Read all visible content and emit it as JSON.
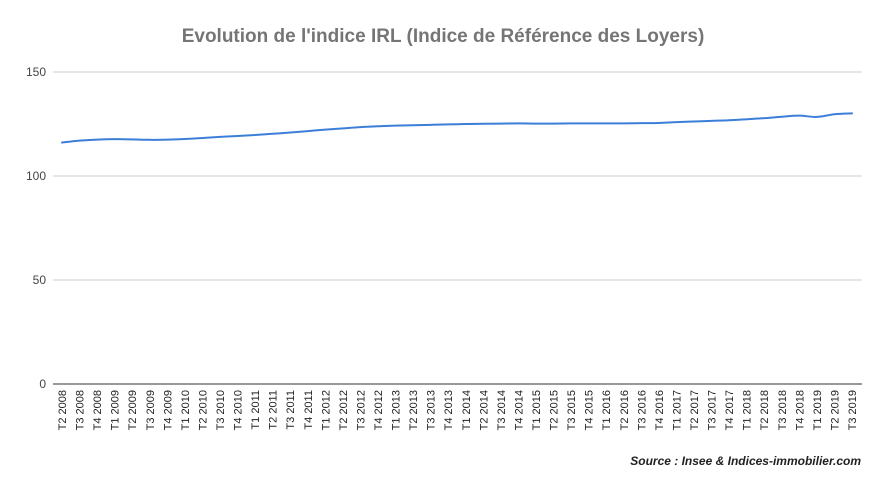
{
  "chart_data": {
    "type": "line",
    "title": "Evolution de l'indice IRL (Indice de Référence des Loyers)",
    "xlabel": "",
    "ylabel": "",
    "ylim": [
      0,
      150
    ],
    "yticks": [
      0,
      50,
      100,
      150
    ],
    "grid": true,
    "legend": "none",
    "line_color": "#3c7fd9",
    "source": "Source : Insee & Indices-immobilier.com",
    "x": [
      "T2 2008",
      "T3 2008",
      "T4 2008",
      "T1 2009",
      "T2 2009",
      "T3 2009",
      "T4 2009",
      "T1 2010",
      "T2 2010",
      "T3 2010",
      "T4 2010",
      "T1 2011",
      "T2 2011",
      "T3 2011",
      "T4 2011",
      "T1 2012",
      "T2 2012",
      "T3 2012",
      "T4 2012",
      "T1 2013",
      "T2 2013",
      "T3 2013",
      "T4 2013",
      "T1 2014",
      "T2 2014",
      "T3 2014",
      "T4 2014",
      "T1 2015",
      "T2 2015",
      "T3 2015",
      "T4 2015",
      "T1 2016",
      "T2 2016",
      "T3 2016",
      "T4 2016",
      "T1 2017",
      "T2 2017",
      "T3 2017",
      "T4 2017",
      "T1 2018",
      "T2 2018",
      "T3 2018",
      "T4 2018",
      "T1 2019",
      "T2 2019",
      "T3 2019"
    ],
    "series": [
      {
        "values": [
          116.1,
          117.0,
          117.5,
          117.7,
          117.6,
          117.4,
          117.5,
          117.8,
          118.3,
          118.8,
          119.2,
          119.7,
          120.3,
          120.9,
          121.6,
          122.3,
          122.9,
          123.5,
          123.9,
          124.2,
          124.4,
          124.6,
          124.8,
          125.0,
          125.1,
          125.2,
          125.3,
          125.2,
          125.2,
          125.3,
          125.3,
          125.3,
          125.3,
          125.4,
          125.5,
          125.9,
          126.2,
          126.5,
          126.8,
          127.3,
          127.8,
          128.5,
          129.0,
          128.4,
          129.7,
          130.1
        ]
      }
    ]
  }
}
